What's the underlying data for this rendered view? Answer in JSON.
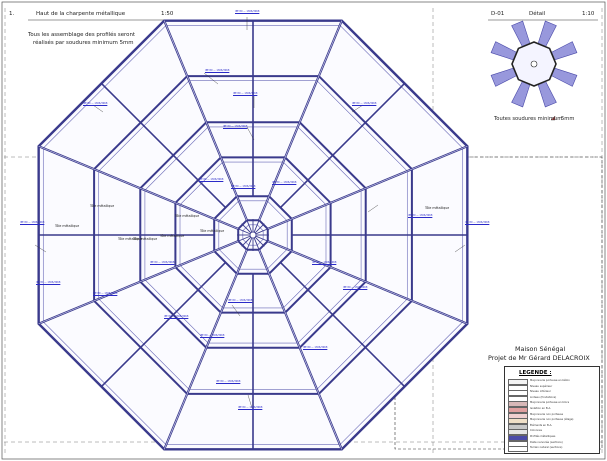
{
  "sheet": {
    "number": "1.",
    "title": "Haut de la charpente métallique",
    "scale": "1:50",
    "note_line1": "Tous les assemblage des profilés seront",
    "note_line2": "réalisés par soudures minimum 5mm"
  },
  "detail": {
    "ref": "D-01",
    "title": "Détail",
    "scale": "1:10",
    "weld_note": "Toutes soudures minimum",
    "weld_size": "5mm"
  },
  "project": {
    "name": "Maison Sénégal",
    "client": "Projet de Mr Gérard DELACROIX"
  },
  "labels": {
    "tole": "Tôle métallique",
    "beam": "IPE 80 — 1306/3068"
  },
  "legend": {
    "title": "LEGENDE :",
    "items": [
      {
        "label": "Maçonnerie porteuse en béton",
        "color": "#f4f4f4"
      },
      {
        "label": "Niveau supérieur",
        "color": "#ffffff"
      },
      {
        "label": "Niveau inférieur",
        "color": "#ffffff"
      },
      {
        "label": "Linteau (fondations)",
        "color": "#ffffff"
      },
      {
        "label": "Maçonnerie porteuse en blocs",
        "color": "#d8b8b8"
      },
      {
        "label": "Isolation en B.A.",
        "color": "#e0a0a0"
      },
      {
        "label": "Maçonnerie non porteuse",
        "color": "#f0d0d0"
      },
      {
        "label": "Maçonnerie non porteuse (étage)",
        "color": "#f0e0c8"
      },
      {
        "label": "Éléments en B.A.",
        "color": "#c8c8c8"
      },
      {
        "label": "Colonnes",
        "color": "#e6e6e6"
      },
      {
        "label": "Profilés métalliques",
        "color": "#4a4aa8"
      },
      {
        "label": "Dalle nervurée (sections)",
        "color": "#ffffff"
      },
      {
        "label": "Terrain naturel (sections)",
        "color": "#ffffff"
      }
    ]
  },
  "colors": {
    "steel": "#3a3a8c",
    "annotation": "#2a2ac8",
    "detail_fill": "#9898dc",
    "line": "#333333"
  }
}
